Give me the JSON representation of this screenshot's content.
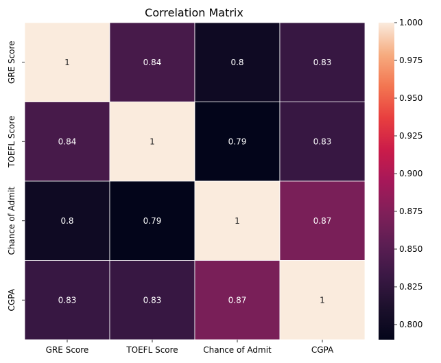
{
  "chart_data": {
    "type": "heatmap",
    "title": "Correlation Matrix",
    "rows": [
      "GRE Score",
      "TOEFL Score",
      "Chance of Admit",
      "CGPA"
    ],
    "columns": [
      "GRE Score",
      "TOEFL Score",
      "Chance of Admit",
      "CGPA"
    ],
    "values": [
      [
        1.0,
        0.84,
        0.8,
        0.83
      ],
      [
        0.84,
        1.0,
        0.79,
        0.83
      ],
      [
        0.8,
        0.79,
        1.0,
        0.87
      ],
      [
        0.83,
        0.83,
        0.87,
        1.0
      ]
    ],
    "annotations": [
      [
        "1",
        "0.84",
        "0.8",
        "0.83"
      ],
      [
        "0.84",
        "1",
        "0.79",
        "0.83"
      ],
      [
        "0.8",
        "0.79",
        "1",
        "0.87"
      ],
      [
        "0.83",
        "0.83",
        "0.87",
        "1"
      ]
    ],
    "colormap": "rocket",
    "colorbar": {
      "range": [
        0.79,
        1.0
      ],
      "ticks": [
        0.8,
        0.825,
        0.85,
        0.875,
        0.9,
        0.925,
        0.95,
        0.975,
        1.0
      ],
      "tick_labels": [
        "0.800",
        "0.825",
        "0.850",
        "0.875",
        "0.900",
        "0.925",
        "0.950",
        "0.975",
        "1.000"
      ]
    },
    "cell_border_color": "#ffffff"
  }
}
